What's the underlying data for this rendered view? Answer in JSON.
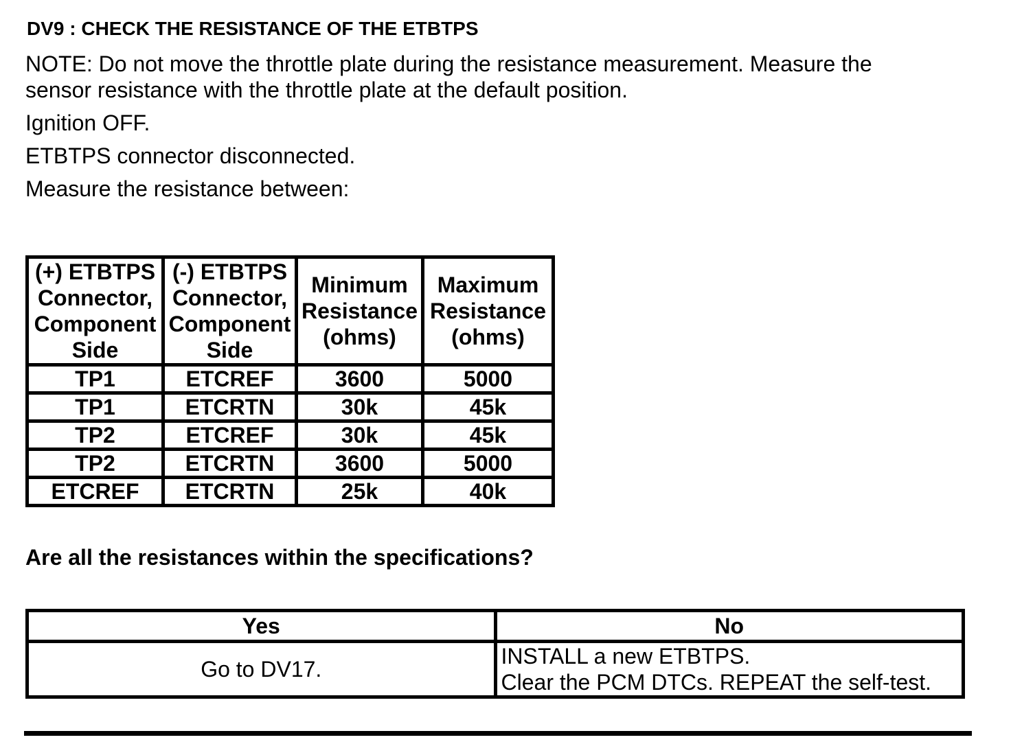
{
  "page": {
    "title": "DV9 : CHECK THE RESISTANCE OF THE ETBTPS",
    "note": "NOTE: Do not move the throttle plate during the resistance measurement. Measure the sensor resistance with the throttle plate at the default position.",
    "steps": [
      "Ignition OFF.",
      "ETBTPS connector disconnected.",
      "Measure the resistance between:"
    ],
    "question": "Are all the resistances within the specifications?"
  },
  "spec_table": {
    "headers": [
      "(+) ETBTPS Connector, Component Side",
      "(-) ETBTPS Connector, Component Side",
      "Minimum Resistance (ohms)",
      "Maximum Resistance (ohms)"
    ],
    "rows": [
      [
        "TP1",
        "ETCREF",
        "3600",
        "5000"
      ],
      [
        "TP1",
        "ETCRTN",
        "30k",
        "45k"
      ],
      [
        "TP2",
        "ETCREF",
        "30k",
        "45k"
      ],
      [
        "TP2",
        "ETCRTN",
        "3600",
        "5000"
      ],
      [
        "ETCREF",
        "ETCRTN",
        "25k",
        "40k"
      ]
    ]
  },
  "decision_table": {
    "yes_header": "Yes",
    "no_header": "No",
    "yes_action": "Go to DV17.",
    "no_actions": [
      "INSTALL a new ETBTPS.",
      "Clear the PCM DTCs. REPEAT the self-test."
    ]
  },
  "colors": {
    "text": "#000000",
    "background": "#ffffff"
  }
}
